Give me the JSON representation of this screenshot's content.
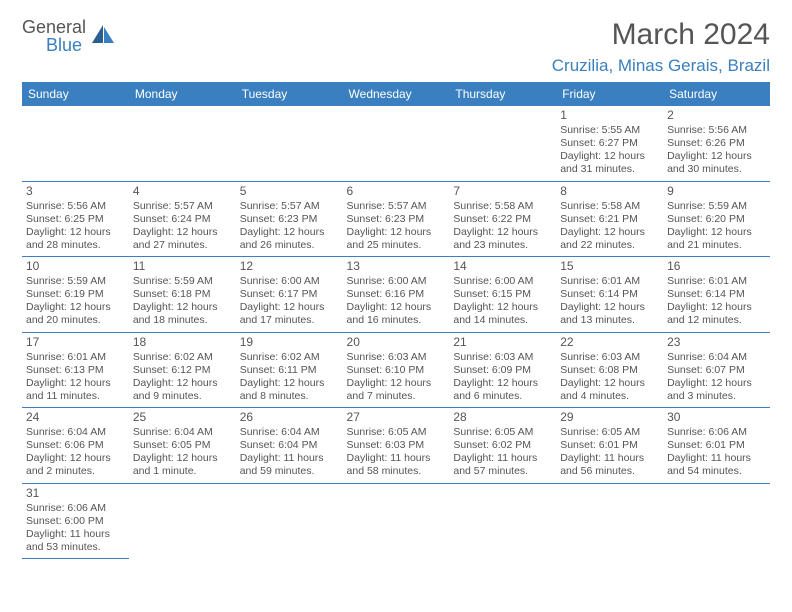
{
  "brand": {
    "part1": "General",
    "part2": "Blue"
  },
  "title": "March 2024",
  "location": "Cruzilia, Minas Gerais, Brazil",
  "header_color": "#3a7fbf",
  "border_color": "#3a7fbf",
  "dayHeaders": [
    "Sunday",
    "Monday",
    "Tuesday",
    "Wednesday",
    "Thursday",
    "Friday",
    "Saturday"
  ],
  "startOffset": 5,
  "days": [
    {
      "n": 1,
      "sr": "5:55 AM",
      "ss": "6:27 PM",
      "dh": 12,
      "dm": 31
    },
    {
      "n": 2,
      "sr": "5:56 AM",
      "ss": "6:26 PM",
      "dh": 12,
      "dm": 30
    },
    {
      "n": 3,
      "sr": "5:56 AM",
      "ss": "6:25 PM",
      "dh": 12,
      "dm": 28
    },
    {
      "n": 4,
      "sr": "5:57 AM",
      "ss": "6:24 PM",
      "dh": 12,
      "dm": 27
    },
    {
      "n": 5,
      "sr": "5:57 AM",
      "ss": "6:23 PM",
      "dh": 12,
      "dm": 26
    },
    {
      "n": 6,
      "sr": "5:57 AM",
      "ss": "6:23 PM",
      "dh": 12,
      "dm": 25
    },
    {
      "n": 7,
      "sr": "5:58 AM",
      "ss": "6:22 PM",
      "dh": 12,
      "dm": 23
    },
    {
      "n": 8,
      "sr": "5:58 AM",
      "ss": "6:21 PM",
      "dh": 12,
      "dm": 22
    },
    {
      "n": 9,
      "sr": "5:59 AM",
      "ss": "6:20 PM",
      "dh": 12,
      "dm": 21
    },
    {
      "n": 10,
      "sr": "5:59 AM",
      "ss": "6:19 PM",
      "dh": 12,
      "dm": 20
    },
    {
      "n": 11,
      "sr": "5:59 AM",
      "ss": "6:18 PM",
      "dh": 12,
      "dm": 18
    },
    {
      "n": 12,
      "sr": "6:00 AM",
      "ss": "6:17 PM",
      "dh": 12,
      "dm": 17
    },
    {
      "n": 13,
      "sr": "6:00 AM",
      "ss": "6:16 PM",
      "dh": 12,
      "dm": 16
    },
    {
      "n": 14,
      "sr": "6:00 AM",
      "ss": "6:15 PM",
      "dh": 12,
      "dm": 14
    },
    {
      "n": 15,
      "sr": "6:01 AM",
      "ss": "6:14 PM",
      "dh": 12,
      "dm": 13
    },
    {
      "n": 16,
      "sr": "6:01 AM",
      "ss": "6:14 PM",
      "dh": 12,
      "dm": 12
    },
    {
      "n": 17,
      "sr": "6:01 AM",
      "ss": "6:13 PM",
      "dh": 12,
      "dm": 11
    },
    {
      "n": 18,
      "sr": "6:02 AM",
      "ss": "6:12 PM",
      "dh": 12,
      "dm": 9
    },
    {
      "n": 19,
      "sr": "6:02 AM",
      "ss": "6:11 PM",
      "dh": 12,
      "dm": 8
    },
    {
      "n": 20,
      "sr": "6:03 AM",
      "ss": "6:10 PM",
      "dh": 12,
      "dm": 7
    },
    {
      "n": 21,
      "sr": "6:03 AM",
      "ss": "6:09 PM",
      "dh": 12,
      "dm": 6
    },
    {
      "n": 22,
      "sr": "6:03 AM",
      "ss": "6:08 PM",
      "dh": 12,
      "dm": 4
    },
    {
      "n": 23,
      "sr": "6:04 AM",
      "ss": "6:07 PM",
      "dh": 12,
      "dm": 3
    },
    {
      "n": 24,
      "sr": "6:04 AM",
      "ss": "6:06 PM",
      "dh": 12,
      "dm": 2
    },
    {
      "n": 25,
      "sr": "6:04 AM",
      "ss": "6:05 PM",
      "dh": 12,
      "dm": 1
    },
    {
      "n": 26,
      "sr": "6:04 AM",
      "ss": "6:04 PM",
      "dh": 11,
      "dm": 59
    },
    {
      "n": 27,
      "sr": "6:05 AM",
      "ss": "6:03 PM",
      "dh": 11,
      "dm": 58
    },
    {
      "n": 28,
      "sr": "6:05 AM",
      "ss": "6:02 PM",
      "dh": 11,
      "dm": 57
    },
    {
      "n": 29,
      "sr": "6:05 AM",
      "ss": "6:01 PM",
      "dh": 11,
      "dm": 56
    },
    {
      "n": 30,
      "sr": "6:06 AM",
      "ss": "6:01 PM",
      "dh": 11,
      "dm": 54
    },
    {
      "n": 31,
      "sr": "6:06 AM",
      "ss": "6:00 PM",
      "dh": 11,
      "dm": 53
    }
  ]
}
